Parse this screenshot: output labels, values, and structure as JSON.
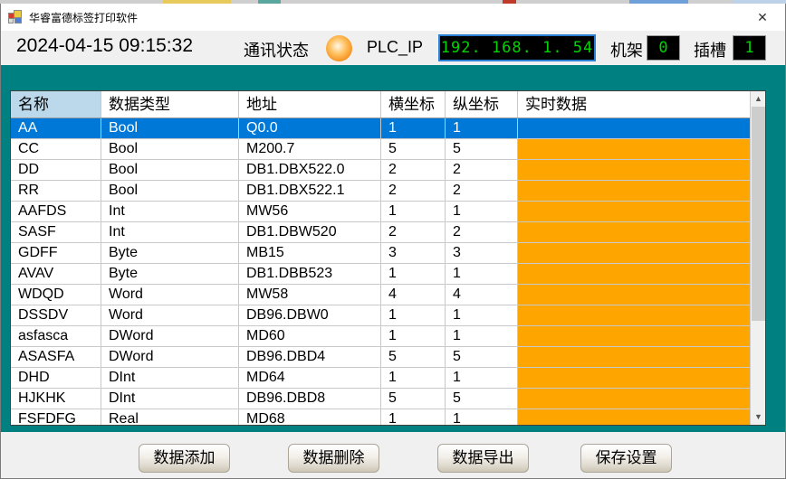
{
  "window": {
    "title": "华睿富德标签打印软件",
    "close_glyph": "✕"
  },
  "info_bar": {
    "datetime": "2024-04-15 09:15:32",
    "comm_status_label": "通讯状态",
    "plc_ip_label": "PLC_IP",
    "plc_ip_value": "192. 168. 1. 54",
    "rack_label": "机架",
    "rack_value": "0",
    "slot_label": "插槽",
    "slot_value": "1"
  },
  "table": {
    "columns": [
      "名称",
      "数据类型",
      "地址",
      "横坐标",
      "纵坐标",
      "实时数据"
    ],
    "selected_row_index": 0,
    "rows": [
      {
        "name": "AA",
        "type": "Bool",
        "address": "Q0.0",
        "x": "1",
        "y": "1",
        "realtime": ""
      },
      {
        "name": "CC",
        "type": "Bool",
        "address": "M200.7",
        "x": "5",
        "y": "5",
        "realtime": ""
      },
      {
        "name": "DD",
        "type": "Bool",
        "address": "DB1.DBX522.0",
        "x": "2",
        "y": "2",
        "realtime": ""
      },
      {
        "name": "RR",
        "type": "Bool",
        "address": "DB1.DBX522.1",
        "x": "2",
        "y": "2",
        "realtime": ""
      },
      {
        "name": "AAFDS",
        "type": "Int",
        "address": "MW56",
        "x": "1",
        "y": "1",
        "realtime": ""
      },
      {
        "name": "SASF",
        "type": "Int",
        "address": "DB1.DBW520",
        "x": "2",
        "y": "2",
        "realtime": ""
      },
      {
        "name": "GDFF",
        "type": "Byte",
        "address": "MB15",
        "x": "3",
        "y": "3",
        "realtime": ""
      },
      {
        "name": "AVAV",
        "type": "Byte",
        "address": "DB1.DBB523",
        "x": "1",
        "y": "1",
        "realtime": ""
      },
      {
        "name": "WDQD",
        "type": "Word",
        "address": "MW58",
        "x": "4",
        "y": "4",
        "realtime": ""
      },
      {
        "name": "DSSDV",
        "type": "Word",
        "address": "DB96.DBW0",
        "x": "1",
        "y": "1",
        "realtime": ""
      },
      {
        "name": "asfasca",
        "type": "DWord",
        "address": "MD60",
        "x": "1",
        "y": "1",
        "realtime": ""
      },
      {
        "name": "ASASFA",
        "type": "DWord",
        "address": "DB96.DBD4",
        "x": "5",
        "y": "5",
        "realtime": ""
      },
      {
        "name": "DHD",
        "type": "DInt",
        "address": "MD64",
        "x": "1",
        "y": "1",
        "realtime": ""
      },
      {
        "name": "HJKHK",
        "type": "DInt",
        "address": "DB96.DBD8",
        "x": "5",
        "y": "5",
        "realtime": ""
      },
      {
        "name": "FSFDFG",
        "type": "Real",
        "address": "MD68",
        "x": "1",
        "y": "1",
        "realtime": ""
      }
    ]
  },
  "buttons": {
    "add": "数据添加",
    "delete": "数据删除",
    "export": "数据导出",
    "save": "保存设置"
  },
  "colors": {
    "teal_background": "#008080",
    "selected_row": "#0078d7",
    "realtime_cell": "#ffa500",
    "led_text": "#00d400",
    "status_indicator": "#f58f1d",
    "header_highlight": "#bcd9ec"
  }
}
